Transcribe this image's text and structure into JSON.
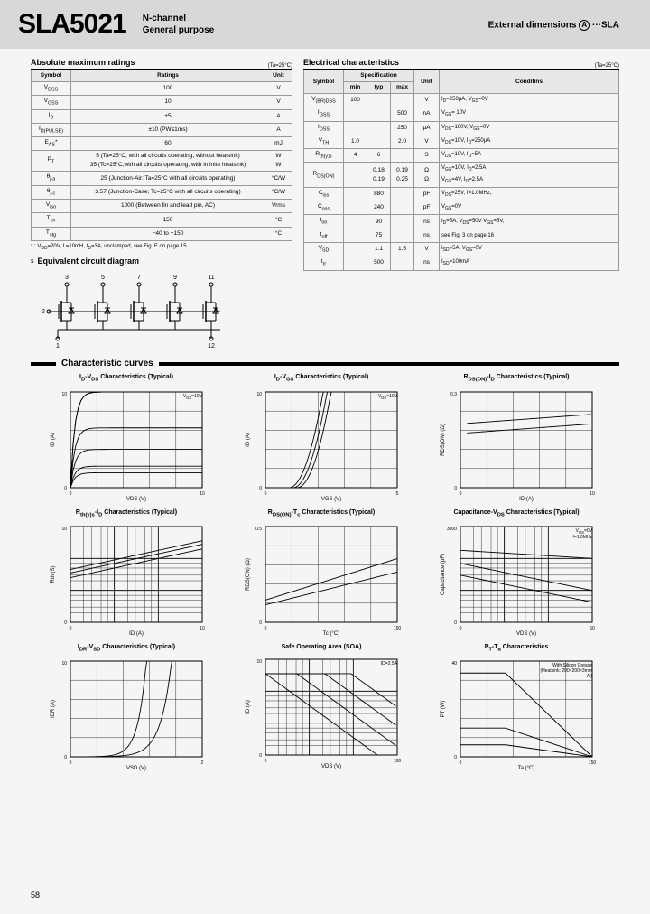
{
  "header": {
    "partNumber": "SLA5021",
    "subtitle1": "N-channel",
    "subtitle2": "General purpose",
    "extDim": "External dimensions",
    "extDimA": "A",
    "extDimSfx": "···SLA"
  },
  "absMax": {
    "title": "Absolute maximum ratings",
    "ta": "(Ta=25°C)",
    "cols": [
      "Symbol",
      "Ratings",
      "Unit"
    ],
    "rows": [
      [
        "V<sub>DSS</sub>",
        "100",
        "V"
      ],
      [
        "V<sub>GSS</sub>",
        "10",
        "V"
      ],
      [
        "I<sub>D</sub>",
        "±5",
        "A"
      ],
      [
        "I<sub>D(PULSE)</sub>",
        "±10 (PW≤1ms)",
        "A"
      ],
      [
        "E<sub>AS</sub>*",
        "60",
        "mJ"
      ],
      [
        "P<sub>T</sub>",
        "5 (Ta=25°C, with all circuits operating, without heatsink)<br>35 (Tc=25°C,with all circuits operating, with infinite heatsink)",
        "W<br>W"
      ],
      [
        "θ<sub>j-a</sub>",
        "25 (Junction-Air: Ta=25°C with all circuits operating)",
        "°C/W"
      ],
      [
        "θ<sub>j-c</sub>",
        "3.57 (Junction-Case; Tc=25°C with all circuits operating)",
        "°C/W"
      ],
      [
        "V<sub>iso</sub>",
        "1000 (Between fin and lead pin, AC)",
        "Vrms"
      ],
      [
        "T<sub>ch</sub>",
        "150",
        "°C"
      ],
      [
        "T<sub>stg</sub>",
        "−40 to +150",
        "°C"
      ]
    ],
    "footnote": "* : V<sub>DD</sub>=20V, L=10mH, I<sub>D</sub>=3A, unclamped, see Fig. E on page 15."
  },
  "elec": {
    "title": "Electrical characteristics",
    "ta": "(Ta=25°C)",
    "cols": [
      "Symbol",
      "min",
      "typ",
      "max",
      "Unit",
      "Conditins"
    ],
    "spec": "Specification",
    "rows": [
      [
        "V<sub>(BR)DSS</sub>",
        "100",
        "",
        "",
        "V",
        "I<sub>D</sub>=250µA, V<sub>GS</sub>=0V"
      ],
      [
        "I<sub>GSS</sub>",
        "",
        "",
        "500",
        "nA",
        "V<sub>GS</sub>= 10V"
      ],
      [
        "I<sub>DSS</sub>",
        "",
        "",
        "250",
        "µA",
        "V<sub>DS</sub>=100V, V<sub>GS</sub>=0V"
      ],
      [
        "V<sub>TH</sub>",
        "1.0",
        "",
        "2.0",
        "V",
        "V<sub>DS</sub>=10V, I<sub>D</sub>=250µA"
      ],
      [
        "R<sub>th(y)s</sub>",
        "4",
        "6",
        "",
        "S",
        "V<sub>DS</sub>=10V, I<sub>D</sub>=5A"
      ],
      [
        "R<sub>DS(ON)</sub>",
        "",
        "0.18<br>0.19",
        "0.19<br>0.25",
        "Ω<br>Ω",
        "V<sub>GS</sub>=10V, I<sub>D</sub>=2.5A<br>V<sub>GS</sub>=4V, I<sub>D</sub>=2.5A"
      ],
      [
        "C<sub>iss</sub>",
        "",
        "880",
        "",
        "pF",
        "V<sub>DS</sub>=25V, f=1.0MHz,"
      ],
      [
        "C<sub>oss</sub>",
        "",
        "240",
        "",
        "pF",
        "V<sub>GS</sub>=0V"
      ],
      [
        "t<sub>on</sub>",
        "",
        "90",
        "",
        "ns",
        "I<sub>D</sub>=5A, V<sub>DS</sub>=50V  V<sub>GS</sub>=5V,"
      ],
      [
        "t<sub>off</sub>",
        "",
        "75",
        "",
        "ns",
        "see Fig. 3 on page 16"
      ],
      [
        "V<sub>SD</sub>",
        "",
        "1.1",
        "1.5",
        "V",
        "I<sub>SD</sub>=5A, V<sub>GS</sub>=0V"
      ],
      [
        "t<sub>rr</sub>",
        "",
        "500",
        "",
        "ns",
        "I<sub>SD</sub>=100mA"
      ]
    ]
  },
  "circuitTitle": "Equivalent circuit diagram",
  "circuit": {
    "topPins": [
      "3",
      "5",
      "7",
      "9",
      "11"
    ],
    "bottomPins": [
      "1",
      "12"
    ]
  },
  "curvesTitle": "Characteristic curves",
  "charts": [
    {
      "title": "I<sub>D</sub>-V<sub>DS</sub> Characteristics (Typical)",
      "xlabel": "V<sub>DS</sub> (V)",
      "ylabel": "I<sub>D</sub> (A)",
      "type": "family",
      "xmax": 10,
      "ymax": 10,
      "note": "V<sub>GS</sub>=10V"
    },
    {
      "title": "I<sub>D</sub>-V<sub>GS</sub> Characteristics (Typical)",
      "xlabel": "V<sub>GS</sub> (V)",
      "ylabel": "I<sub>D</sub> (A)",
      "type": "transfer",
      "xmax": 5,
      "ymax": 10,
      "note": "V<sub>DS</sub>=10V"
    },
    {
      "title": "R<sub>DS(ON)</sub>-I<sub>D</sub> Characteristics (Typical)",
      "xlabel": "I<sub>D</sub> (A)",
      "ylabel": "R<sub>DS(ON)</sub> (Ω)",
      "type": "rds",
      "xmax": 10,
      "ymax": 0.3
    },
    {
      "title": "R<sub>th(y)s</sub>-I<sub>D</sub> Characteristics (Typical)",
      "xlabel": "I<sub>D</sub> (A)",
      "ylabel": "R<sub>th</sub> (S)",
      "type": "rth",
      "xmax": 10,
      "ymax": 10,
      "log": true
    },
    {
      "title": "R<sub>DS(ON)</sub>-T<sub>c</sub> Characteristics (Typical)",
      "xlabel": "T<sub>c</sub> (°C)",
      "ylabel": "R<sub>DS(ON)</sub> (Ω)",
      "type": "rdstc",
      "xmax": 150,
      "ymax": 0.5
    },
    {
      "title": "Capacitance-V<sub>DS</sub> Characteristics (Typical)",
      "xlabel": "V<sub>DS</sub> (V)",
      "ylabel": "Capacitance (pF)",
      "type": "cap",
      "xmax": 50,
      "ymax": 3000,
      "log": true,
      "note": "V<sub>GS</sub>=0V<br>f=1.0MHz"
    },
    {
      "title": "I<sub>DR</sub>-V<sub>SD</sub> Characteristics (Typical)",
      "xlabel": "V<sub>SD</sub> (V)",
      "ylabel": "I<sub>DR</sub> (A)",
      "type": "diode",
      "xmax": 2,
      "ymax": 10
    },
    {
      "title": "Safe Operating Area (SOA)",
      "xlabel": "V<sub>DS</sub> (V)",
      "ylabel": "I<sub>D</sub> (A)",
      "type": "soa",
      "xmax": 100,
      "ymax": 10,
      "log": true,
      "note": "ID=2.5A"
    },
    {
      "title": "P<sub>T</sub>-T<sub>a</sub> Characteristics",
      "xlabel": "T<sub>a</sub> (°C)",
      "ylabel": "P<sub>T</sub> (W)",
      "type": "pt",
      "xmax": 150,
      "ymax": 40,
      "note": "With Silicon Grease<br>(Heatsink: 200×200×3mm Al)"
    }
  ],
  "style": {
    "gridColor": "#000",
    "lineColor": "#000",
    "bg": "#fff",
    "chartW": 180,
    "chartH": 130,
    "plotX": 28,
    "plotY": 8,
    "plotW": 146,
    "plotH": 106
  },
  "pageNum": "58"
}
